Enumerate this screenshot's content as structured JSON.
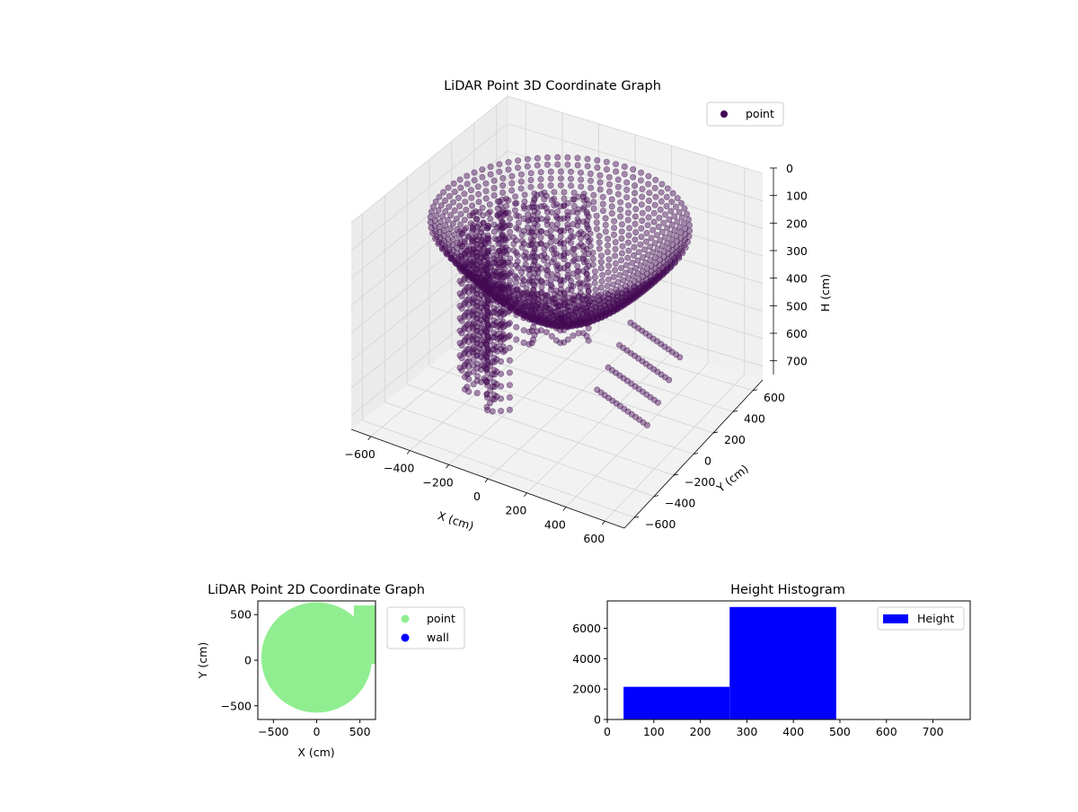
{
  "colors": {
    "point3d": "#440b54",
    "point2d": "#90ee90",
    "wall": "#0000ff",
    "histogram": "#0000ff",
    "pane": "#f2f2f2",
    "grid": "#d6d6d6"
  },
  "chart_data": [
    {
      "type": "scatter",
      "subtype": "3d",
      "title": "LiDAR Point 3D Coordinate Graph",
      "xlabel": "X (cm)",
      "ylabel": "Y (cm)",
      "zlabel": "H (cm)",
      "xlim": [
        -700,
        700
      ],
      "ylim": [
        -700,
        700
      ],
      "zlim": [
        750,
        0
      ],
      "z_axis_inverted": true,
      "x_ticks": [
        "−600",
        "−400",
        "−200",
        "0",
        "200",
        "400",
        "600"
      ],
      "y_ticks": [
        "−600",
        "−400",
        "−200",
        "0",
        "200",
        "400",
        "600"
      ],
      "z_ticks": [
        "0",
        "100",
        "200",
        "300",
        "400",
        "500",
        "600",
        "700"
      ],
      "grid": true,
      "legend": {
        "position": "top-right",
        "entries": [
          "point"
        ]
      },
      "series": [
        {
          "name": "point",
          "shape": "bowl of concentric rings",
          "rim_radius": 600,
          "rim_height": 80,
          "center_height": 420,
          "bottom_height": 680
        }
      ]
    },
    {
      "type": "scatter",
      "title": "LiDAR Point 2D Coordinate Graph",
      "xlabel": "X (cm)",
      "ylabel": "Y (cm)",
      "xlim": [
        -680,
        680
      ],
      "ylim": [
        -650,
        650
      ],
      "x_ticks": [
        "−500",
        "0",
        "500"
      ],
      "y_ticks": [
        "−500",
        "0",
        "500"
      ],
      "legend": {
        "position": "outside-right",
        "entries": [
          "point",
          "wall"
        ]
      },
      "series": [
        {
          "name": "point",
          "shape": "filled disc",
          "x_range": [
            -640,
            640
          ],
          "y_range": [
            -570,
            650
          ]
        },
        {
          "name": "wall",
          "points": []
        }
      ]
    },
    {
      "type": "bar",
      "subtype": "histogram",
      "title": "Height Histogram",
      "xlim": [
        0,
        780
      ],
      "ylim": [
        0,
        7800
      ],
      "x_ticks": [
        "0",
        "100",
        "200",
        "300",
        "400",
        "500",
        "600",
        "700"
      ],
      "y_ticks": [
        "0",
        "2000",
        "4000",
        "6000"
      ],
      "legend": {
        "position": "top-right",
        "entries": [
          "Height"
        ]
      },
      "series": [
        {
          "name": "Height",
          "bins": [
            {
              "x0": 35,
              "x1": 263,
              "count": 2150
            },
            {
              "x0": 263,
              "x1": 492,
              "count": 7400
            },
            {
              "x0": 492,
              "x1": 720,
              "count": 0
            }
          ]
        }
      ]
    }
  ]
}
